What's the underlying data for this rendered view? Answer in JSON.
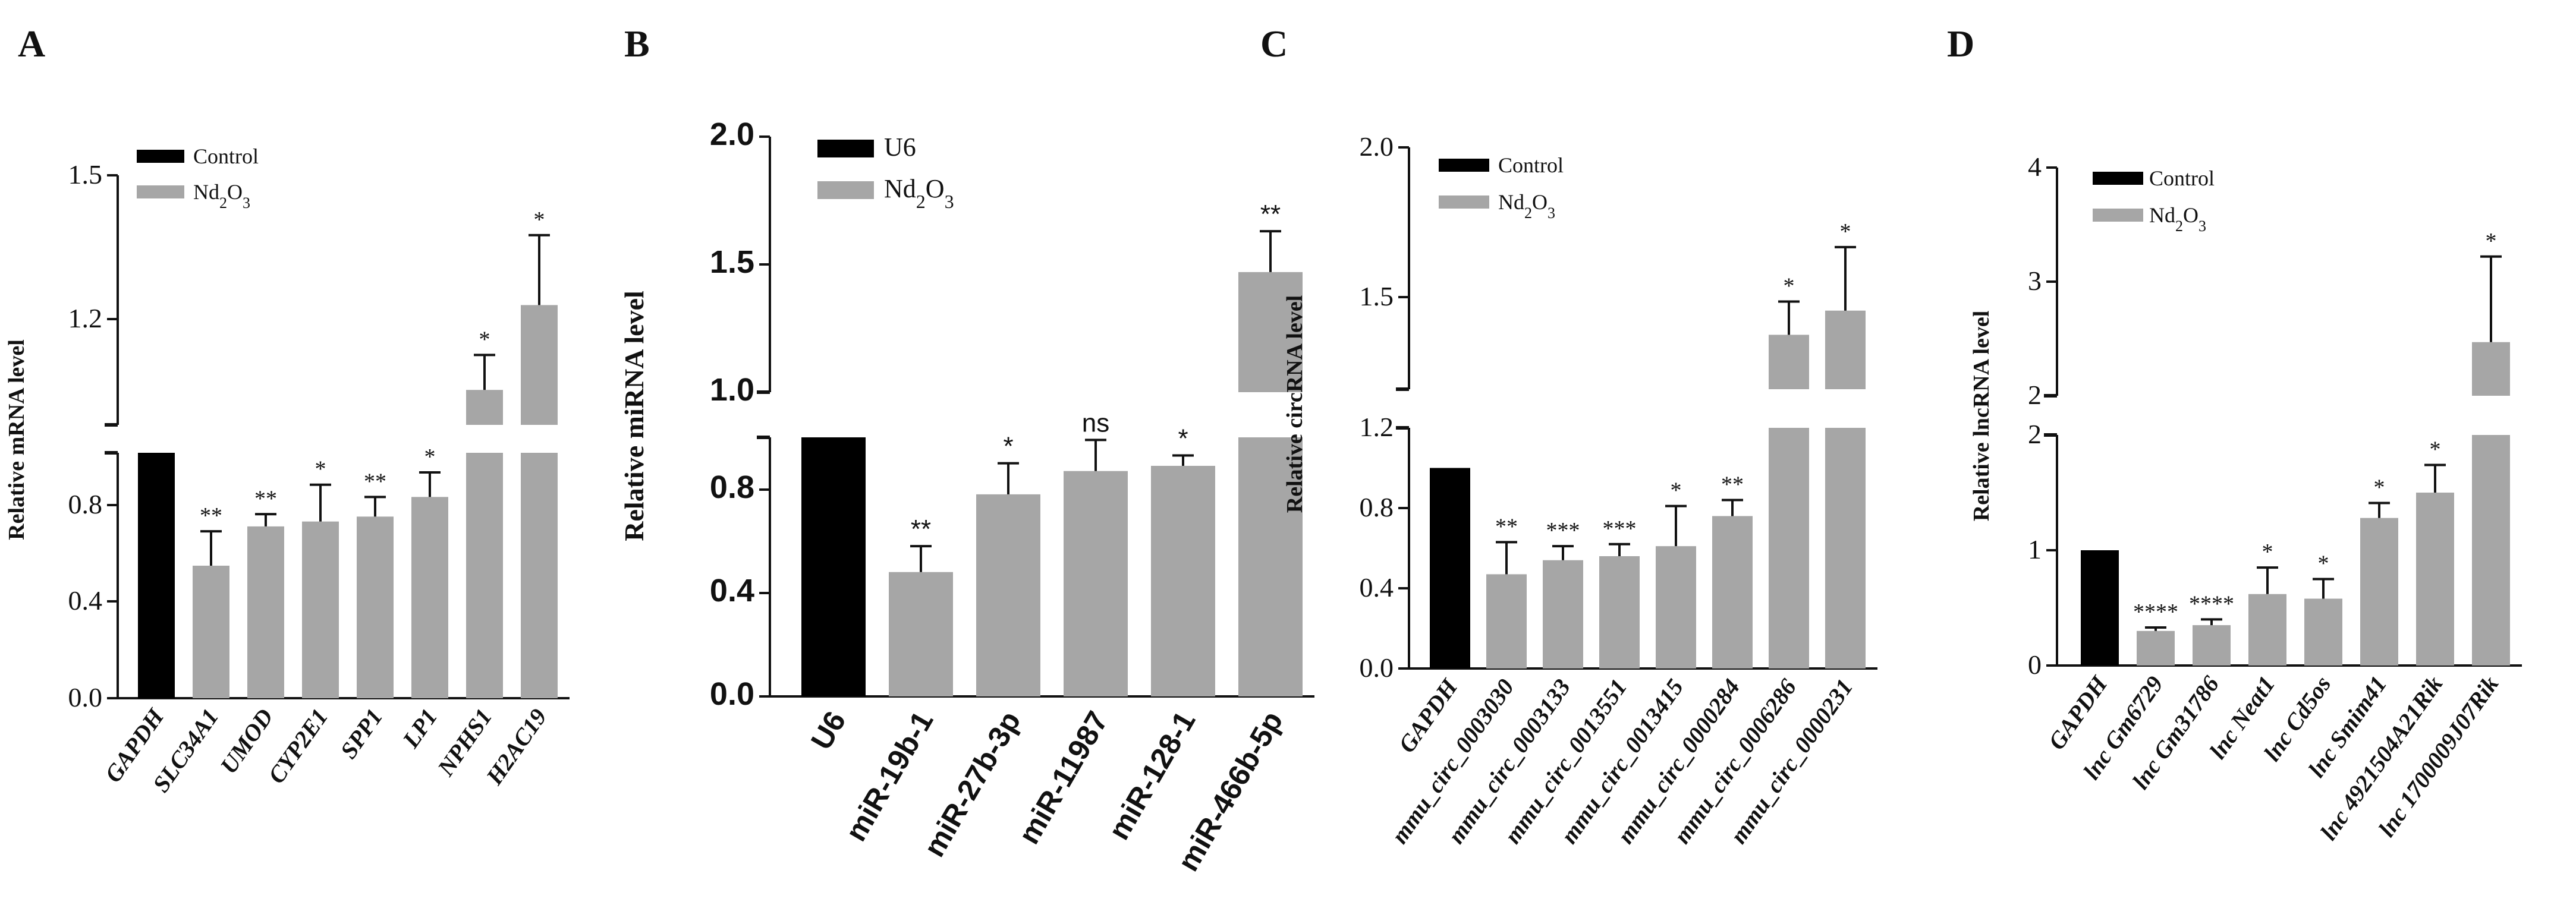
{
  "figure": {
    "panel_letters": [
      "A",
      "B",
      "C",
      "D"
    ]
  },
  "chart_data": [
    {
      "panel": "A",
      "type": "bar",
      "title": "",
      "xlabel": "",
      "ylabel": "Relative mRNA level",
      "ylim": [
        0,
        1.5
      ],
      "axis_break": {
        "lower": [
          0,
          1.0
        ],
        "upper": [
          1.0,
          1.5
        ]
      },
      "yticks": [
        "0.0",
        "0.4",
        "0.8",
        "1.2",
        "1.5"
      ],
      "categories": [
        "GAPDH",
        "SLC34A1",
        "UMOD",
        "CYP2E1",
        "SPP1",
        "LP1",
        "NPHS1",
        "H2AC19"
      ],
      "values": [
        1.0,
        0.54,
        0.7,
        0.72,
        0.74,
        0.82,
        1.07,
        1.24
      ],
      "errors": [
        0,
        0.14,
        0.05,
        0.15,
        0.08,
        0.1,
        0.07,
        0.14
      ],
      "significance": [
        "",
        "**",
        "**",
        "*",
        "**",
        "*",
        "*",
        "*"
      ],
      "legend": {
        "position": "top-left",
        "entries": [
          {
            "label": "Control",
            "color": "#000000"
          },
          {
            "label": "Nd₂O₃",
            "color": "#a6a6a6"
          }
        ]
      }
    },
    {
      "panel": "B",
      "type": "bar",
      "title": "",
      "xlabel": "",
      "ylabel": "Relative miRNA level",
      "ylim": [
        0,
        2.0
      ],
      "axis_break": {
        "lower": [
          0,
          1.0
        ],
        "upper": [
          1.0,
          2.0
        ]
      },
      "yticks": [
        "0.0",
        "0.4",
        "0.8",
        "1.0",
        "1.5",
        "2.0"
      ],
      "categories": [
        "U6",
        "miR-19b-1",
        "miR-27b-3p",
        "miR-11987",
        "miR-128-1",
        "miR-466b-5p"
      ],
      "values": [
        1.0,
        0.48,
        0.78,
        0.87,
        0.89,
        1.47
      ],
      "errors": [
        0,
        0.1,
        0.12,
        0.12,
        0.04,
        0.16
      ],
      "significance": [
        "",
        "**",
        "*",
        "ns",
        "*",
        "**"
      ],
      "legend": {
        "position": "top-left",
        "entries": [
          {
            "label": "U6",
            "color": "#000000"
          },
          {
            "label": "Nd₂O₃",
            "color": "#a6a6a6"
          }
        ]
      }
    },
    {
      "panel": "C",
      "type": "bar",
      "title": "",
      "xlabel": "",
      "ylabel": "Relative circRNA level",
      "ylim": [
        0,
        2.0
      ],
      "axis_break": {
        "lower": [
          0,
          1.2
        ],
        "upper": [
          1.2,
          2.0
        ]
      },
      "yticks": [
        "0.0",
        "0.4",
        "0.8",
        "1.2",
        "1.5",
        "2.0"
      ],
      "categories": [
        "GAPDH",
        "mmu_circ_0003030",
        "mmu_circ_0003133",
        "mmu_circ_0013551",
        "mmu_circ_0013415",
        "mmu_circ_0000284",
        "mmu_circ_0006286",
        "mmu_circ_0000231"
      ],
      "values": [
        1.0,
        0.47,
        0.54,
        0.56,
        0.61,
        0.76,
        1.38,
        1.46
      ],
      "errors": [
        0,
        0.16,
        0.07,
        0.06,
        0.2,
        0.08,
        0.11,
        0.21
      ],
      "significance": [
        "",
        "**",
        "***",
        "***",
        "*",
        "**",
        "*",
        "*"
      ],
      "legend": {
        "position": "top-left",
        "entries": [
          {
            "label": "Control",
            "color": "#000000"
          },
          {
            "label": "Nd₂O₃",
            "color": "#a6a6a6"
          }
        ]
      }
    },
    {
      "panel": "D",
      "type": "bar",
      "title": "",
      "xlabel": "",
      "ylabel": "Relative lncRNA level",
      "ylim": [
        0,
        4
      ],
      "axis_break": {
        "lower": [
          0,
          2
        ],
        "upper": [
          2,
          4
        ]
      },
      "yticks": [
        "0",
        "1",
        "2",
        "2",
        "3",
        "4"
      ],
      "categories": [
        "GAPDH",
        "lnc Gm6729",
        "lnc Gm31786",
        "lnc Neat1",
        "lnc Cd5os",
        "lnc Smim41",
        "lnc 4921504A21Rik",
        "lnc 1700009J07Rik"
      ],
      "values": [
        1.0,
        0.3,
        0.35,
        0.62,
        0.58,
        1.28,
        1.5,
        2.47
      ],
      "errors": [
        0,
        0.03,
        0.05,
        0.23,
        0.17,
        0.13,
        0.24,
        0.75
      ],
      "significance": [
        "",
        "****",
        "****",
        "*",
        "*",
        "*",
        "*",
        "*"
      ],
      "legend": {
        "position": "top-left",
        "entries": [
          {
            "label": "Control",
            "color": "#000000"
          },
          {
            "label": "Nd₂O₃",
            "color": "#a6a6a6"
          }
        ]
      }
    }
  ],
  "colors": {
    "control": "#000000",
    "treatment": "#a6a6a6",
    "axis": "#111111"
  }
}
